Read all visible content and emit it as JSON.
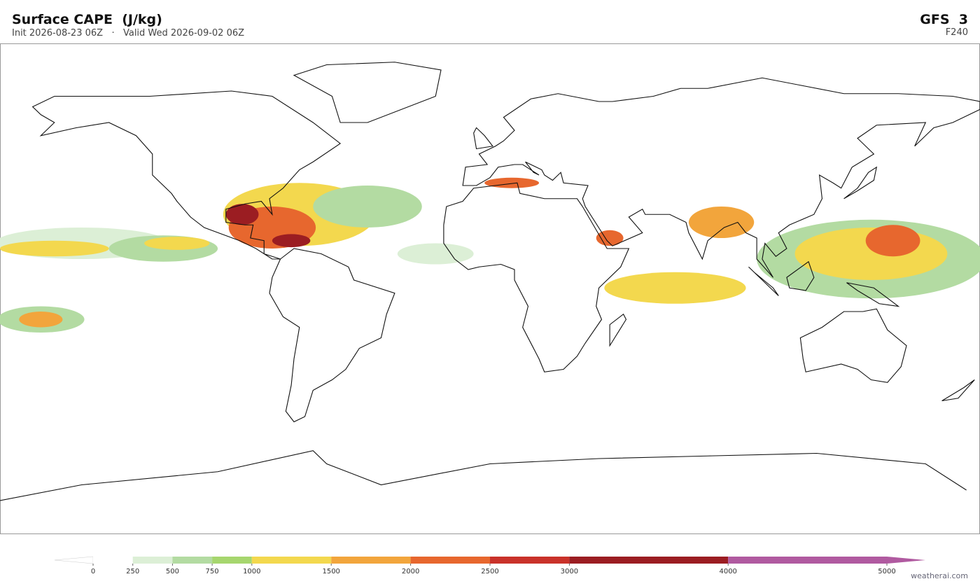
{
  "header": {
    "title": "Surface CAPE  (J/kg)",
    "subtitle": "Init 2026-08-23 06Z   ·   Valid Wed 2026-09-02 06Z",
    "model": "GFS  3",
    "forecast_hour": "F240"
  },
  "colorbar": {
    "bins": [
      0,
      250,
      500,
      750,
      1000,
      1500,
      2000,
      2500,
      3000,
      4000,
      5000
    ],
    "colors": [
      "#ffffff",
      "#dcefd6",
      "#b3dba2",
      "#a6d66e",
      "#f3d84e",
      "#f2a53c",
      "#e7672e",
      "#c9322a",
      "#9b1d22",
      "#b05aa0"
    ],
    "xlim": [
      0,
      5000
    ],
    "xticks": [
      0,
      250,
      500,
      750,
      1000,
      1500,
      2000,
      2500,
      3000,
      4000,
      5000
    ]
  },
  "footer": {
    "credit": "weatherai.com"
  }
}
